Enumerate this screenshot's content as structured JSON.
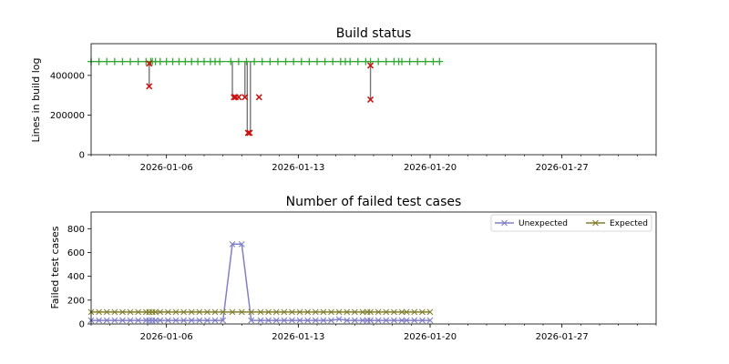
{
  "colors": {
    "success": "#33aa33",
    "failure": "#cc1111",
    "drop_line": "#777777",
    "unexpected": "#8080c8",
    "expected": "#808030"
  },
  "chart_data": [
    {
      "type": "scatter",
      "title": "Build status",
      "xlabel": "",
      "ylabel": "Lines in build log",
      "x_axis": "date",
      "xlim": [
        "2026-01-02",
        "2026-02-01"
      ],
      "ylim": [
        0,
        560000
      ],
      "x_ticks": [
        "2026-01-06",
        "2026-01-13",
        "2026-01-20",
        "2026-01-27"
      ],
      "y_ticks": [
        0,
        200000,
        400000
      ],
      "y_tick_labels": [
        "0",
        "200000",
        "400000"
      ],
      "baseline": 470000,
      "success_marker": "+",
      "failure_marker": "x",
      "success_dates": [
        "2026-01-02 00:00",
        "2026-01-02 10:00",
        "2026-01-02 20:00",
        "2026-01-03 06:00",
        "2026-01-03 16:00",
        "2026-01-04 02:00",
        "2026-01-04 12:00",
        "2026-01-04 22:00",
        "2026-01-05 04:00",
        "2026-01-05 06:00",
        "2026-01-05 10:00",
        "2026-01-05 16:00",
        "2026-01-06 00:00",
        "2026-01-06 08:00",
        "2026-01-06 16:00",
        "2026-01-07 00:00",
        "2026-01-07 08:00",
        "2026-01-07 16:00",
        "2026-01-08 00:00",
        "2026-01-08 08:00",
        "2026-01-08 14:00",
        "2026-01-08 20:00",
        "2026-01-09 10:00",
        "2026-01-09 20:00",
        "2026-01-10 06:00",
        "2026-01-10 16:00",
        "2026-01-11 02:00",
        "2026-01-11 12:00",
        "2026-01-11 22:00",
        "2026-01-12 08:00",
        "2026-01-12 18:00",
        "2026-01-13 04:00",
        "2026-01-13 14:00",
        "2026-01-14 00:00",
        "2026-01-14 10:00",
        "2026-01-14 20:00",
        "2026-01-15 06:00",
        "2026-01-15 12:00",
        "2026-01-15 18:00",
        "2026-01-16 04:00",
        "2026-01-16 14:00",
        "2026-01-16 20:00",
        "2026-01-17 06:00",
        "2026-01-17 16:00",
        "2026-01-18 02:00",
        "2026-01-18 08:00",
        "2026-01-18 12:00",
        "2026-01-18 22:00",
        "2026-01-19 08:00",
        "2026-01-19 18:00",
        "2026-01-20 04:00",
        "2026-01-20 12:00"
      ],
      "failures": [
        {
          "date": "2026-01-05 02:00",
          "lines": 460000
        },
        {
          "date": "2026-01-05 02:00",
          "lines": 345000
        },
        {
          "date": "2026-01-09 14:00",
          "lines": 290000
        },
        {
          "date": "2026-01-09 16:00",
          "lines": 290000
        },
        {
          "date": "2026-01-10 22:00",
          "lines": 290000
        },
        {
          "date": "2026-01-10 04:00",
          "lines": 290000
        },
        {
          "date": "2026-01-09 20:00",
          "lines": 290000
        },
        {
          "date": "2026-01-10 08:00",
          "lines": 110000
        },
        {
          "date": "2026-01-10 10:00",
          "lines": 110000
        },
        {
          "date": "2026-01-16 20:00",
          "lines": 450000
        },
        {
          "date": "2026-01-16 20:00",
          "lines": 278000
        }
      ],
      "drops": [
        {
          "date": "2026-01-05 02:00",
          "lines": 345000
        },
        {
          "date": "2026-01-09 12:00",
          "lines": 290000
        },
        {
          "date": "2026-01-10 04:00",
          "lines": 290000
        },
        {
          "date": "2026-01-10 07:00",
          "lines": 110000
        },
        {
          "date": "2026-01-10 11:00",
          "lines": 110000
        },
        {
          "date": "2026-01-16 20:00",
          "lines": 278000
        }
      ]
    },
    {
      "type": "line",
      "title": "Number of failed test cases",
      "xlabel": "",
      "ylabel": "Failed test cases",
      "x_axis": "date",
      "xlim": [
        "2026-01-02",
        "2026-02-01"
      ],
      "ylim": [
        0,
        940
      ],
      "x_ticks": [
        "2026-01-06",
        "2026-01-13",
        "2026-01-20",
        "2026-01-27"
      ],
      "y_ticks": [
        0,
        200,
        400,
        600,
        800
      ],
      "y_tick_labels": [
        "0",
        "200",
        "400",
        "600",
        "800"
      ],
      "legend_position": "top-right",
      "legend_columns": 2,
      "series": [
        {
          "name": "Unexpected",
          "marker": "x",
          "x": [
            "2026-01-02 00:00",
            "2026-01-02 10:00",
            "2026-01-02 20:00",
            "2026-01-03 06:00",
            "2026-01-03 16:00",
            "2026-01-04 02:00",
            "2026-01-04 12:00",
            "2026-01-04 22:00",
            "2026-01-05 02:00",
            "2026-01-05 06:00",
            "2026-01-05 10:00",
            "2026-01-05 16:00",
            "2026-01-06 02:00",
            "2026-01-06 12:00",
            "2026-01-06 22:00",
            "2026-01-07 08:00",
            "2026-01-07 18:00",
            "2026-01-08 04:00",
            "2026-01-08 14:00",
            "2026-01-09 00:00",
            "2026-01-09 12:00",
            "2026-01-10 00:00",
            "2026-01-10 12:00",
            "2026-01-11 00:00",
            "2026-01-11 10:00",
            "2026-01-11 20:00",
            "2026-01-12 06:00",
            "2026-01-12 16:00",
            "2026-01-13 02:00",
            "2026-01-13 12:00",
            "2026-01-13 22:00",
            "2026-01-14 08:00",
            "2026-01-14 18:00",
            "2026-01-15 04:00",
            "2026-01-15 14:00",
            "2026-01-16 00:00",
            "2026-01-16 10:00",
            "2026-01-16 16:00",
            "2026-01-16 20:00",
            "2026-01-17 06:00",
            "2026-01-17 16:00",
            "2026-01-18 02:00",
            "2026-01-18 12:00",
            "2026-01-18 18:00",
            "2026-01-19 04:00",
            "2026-01-19 14:00",
            "2026-01-20 00:00"
          ],
          "y": [
            30,
            30,
            30,
            30,
            30,
            30,
            30,
            30,
            30,
            30,
            30,
            30,
            30,
            30,
            30,
            30,
            30,
            30,
            30,
            30,
            670,
            670,
            30,
            30,
            30,
            30,
            30,
            30,
            30,
            30,
            30,
            30,
            30,
            40,
            30,
            30,
            30,
            30,
            30,
            30,
            30,
            30,
            30,
            30,
            30,
            30,
            30
          ]
        },
        {
          "name": "Expected",
          "marker": "x",
          "x": [
            "2026-01-02 00:00",
            "2026-01-02 10:00",
            "2026-01-02 20:00",
            "2026-01-03 06:00",
            "2026-01-03 16:00",
            "2026-01-04 02:00",
            "2026-01-04 12:00",
            "2026-01-04 22:00",
            "2026-01-05 02:00",
            "2026-01-05 06:00",
            "2026-01-05 10:00",
            "2026-01-05 16:00",
            "2026-01-06 02:00",
            "2026-01-06 12:00",
            "2026-01-06 22:00",
            "2026-01-07 08:00",
            "2026-01-07 18:00",
            "2026-01-08 04:00",
            "2026-01-08 14:00",
            "2026-01-09 00:00",
            "2026-01-09 12:00",
            "2026-01-10 00:00",
            "2026-01-10 12:00",
            "2026-01-11 00:00",
            "2026-01-11 10:00",
            "2026-01-11 20:00",
            "2026-01-12 06:00",
            "2026-01-12 16:00",
            "2026-01-13 02:00",
            "2026-01-13 12:00",
            "2026-01-13 22:00",
            "2026-01-14 08:00",
            "2026-01-14 18:00",
            "2026-01-15 04:00",
            "2026-01-15 14:00",
            "2026-01-16 00:00",
            "2026-01-16 10:00",
            "2026-01-16 16:00",
            "2026-01-16 20:00",
            "2026-01-17 06:00",
            "2026-01-17 16:00",
            "2026-01-18 02:00",
            "2026-01-18 12:00",
            "2026-01-18 18:00",
            "2026-01-19 04:00",
            "2026-01-19 14:00",
            "2026-01-20 00:00"
          ],
          "y": [
            100,
            100,
            100,
            100,
            100,
            100,
            100,
            100,
            100,
            100,
            100,
            100,
            100,
            100,
            100,
            100,
            100,
            100,
            100,
            100,
            100,
            100,
            100,
            100,
            100,
            100,
            100,
            100,
            100,
            100,
            100,
            100,
            100,
            100,
            100,
            100,
            100,
            100,
            100,
            100,
            100,
            100,
            100,
            100,
            100,
            100,
            100
          ]
        }
      ]
    }
  ]
}
